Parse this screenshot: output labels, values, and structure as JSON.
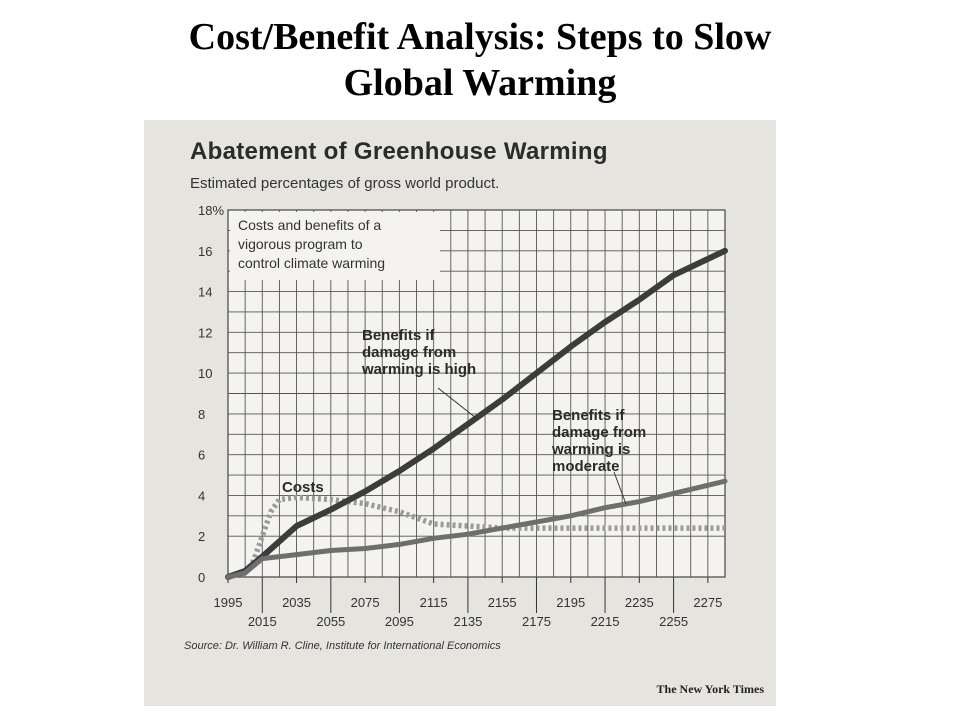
{
  "slide": {
    "title_line1": "Cost/Benefit Analysis: Steps to Slow",
    "title_line2": "Global Warming"
  },
  "chart_data": {
    "type": "line",
    "title": "Abatement of Greenhouse Warming",
    "subtitle": "Estimated percentages of gross world product.",
    "ylim": [
      0,
      18
    ],
    "y_ticks": [
      "0",
      "2",
      "4",
      "6",
      "8",
      "10",
      "12",
      "14",
      "16",
      "18%"
    ],
    "xlim": [
      1995,
      2285
    ],
    "x_ticks_upper": [
      "1995",
      "2035",
      "2075",
      "2115",
      "2155",
      "2195",
      "2235",
      "2275"
    ],
    "x_ticks_lower": [
      "2015",
      "2055",
      "2095",
      "2135",
      "2175",
      "2215",
      "2255"
    ],
    "x_tick_values_upper": [
      1995,
      2035,
      2075,
      2115,
      2155,
      2195,
      2235,
      2275
    ],
    "x_tick_values_lower": [
      2015,
      2055,
      2095,
      2135,
      2175,
      2215,
      2255
    ],
    "grid": true,
    "box_label": [
      "Costs and benefits of a",
      "vigorous program to",
      "control climate warming"
    ],
    "series": [
      {
        "name": "Costs",
        "label_lines": [
          "Costs"
        ],
        "style": "dotted",
        "color": "#9a9a9a",
        "x": [
          1995,
          2005,
          2010,
          2015,
          2020,
          2025,
          2035,
          2055,
          2075,
          2095,
          2105,
          2115,
          2135,
          2155,
          2175,
          2215,
          2255,
          2285
        ],
        "y": [
          0,
          0.2,
          0.8,
          2.0,
          3.2,
          3.8,
          3.9,
          3.8,
          3.6,
          3.2,
          2.9,
          2.6,
          2.5,
          2.4,
          2.4,
          2.4,
          2.4,
          2.4
        ]
      },
      {
        "name": "Benefits if damage from warming is high",
        "label_lines": [
          "Benefits if",
          "damage from",
          "warming is high"
        ],
        "style": "solid",
        "color": "#3c3c3c",
        "x": [
          1995,
          2005,
          2015,
          2035,
          2055,
          2075,
          2095,
          2115,
          2135,
          2155,
          2175,
          2195,
          2215,
          2235,
          2255,
          2285
        ],
        "y": [
          0,
          0.3,
          1.0,
          2.5,
          3.3,
          4.2,
          5.2,
          6.3,
          7.5,
          8.7,
          10.0,
          11.3,
          12.5,
          13.6,
          14.8,
          16.0
        ]
      },
      {
        "name": "Benefits if damage from warming is moderate",
        "label_lines": [
          "Benefits if",
          "damage from",
          "warming is",
          "moderate"
        ],
        "style": "solid",
        "color": "#6e6e6e",
        "x": [
          1995,
          2005,
          2015,
          2035,
          2055,
          2075,
          2095,
          2115,
          2135,
          2155,
          2175,
          2195,
          2215,
          2235,
          2255,
          2285
        ],
        "y": [
          0,
          0.2,
          0.9,
          1.1,
          1.3,
          1.4,
          1.6,
          1.9,
          2.1,
          2.4,
          2.7,
          3.0,
          3.4,
          3.7,
          4.1,
          4.7
        ]
      }
    ]
  },
  "source": "Source: Dr. William R. Cline, Institute for International Economics",
  "credit": "The New York Times"
}
